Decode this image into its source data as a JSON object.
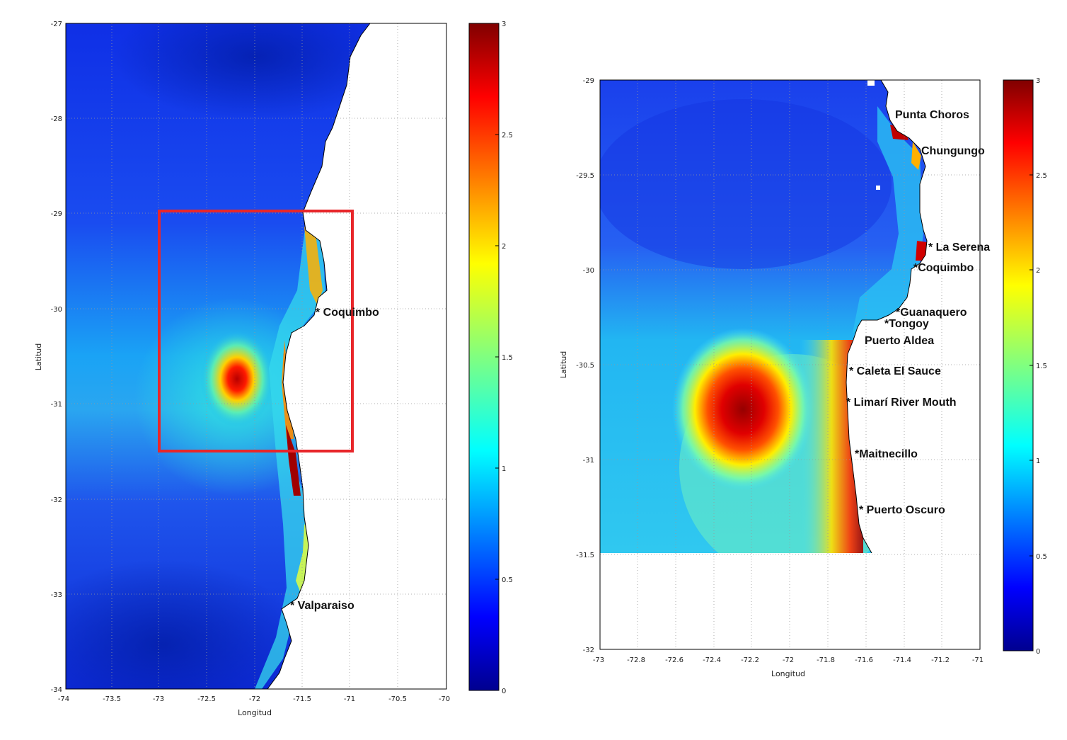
{
  "maps": [
    {
      "id": "left",
      "xlabel": "Longitud",
      "ylabel": "Latitud",
      "x_ticks": [
        "-74",
        "-73.5",
        "-73",
        "-72.5",
        "-72",
        "-71.5",
        "-71",
        "-70.5",
        "-70"
      ],
      "y_ticks": [
        "-27",
        "-28",
        "-29",
        "-30",
        "-31",
        "-32",
        "-33",
        "-34"
      ],
      "colorbar_ticks": [
        "3",
        "2.5",
        "2",
        "1.5",
        "1",
        "0.5",
        "0"
      ],
      "places": [
        {
          "label": "* Coquimbo",
          "lon": -71.3,
          "lat": -30.0
        },
        {
          "label": "* Valparaiso",
          "lon": -71.6,
          "lat": -33.1
        }
      ],
      "highlight_box": {
        "lon": [
          -73,
          -71
        ],
        "lat": [
          -31.5,
          -29
        ],
        "color": "#e8262a"
      }
    },
    {
      "id": "right",
      "xlabel": "Longitud",
      "ylabel": "Latitud",
      "x_ticks": [
        "-73",
        "-72.8",
        "-72.6",
        "-72.4",
        "-72.2",
        "-72",
        "-71.8",
        "-71.6",
        "-71.4",
        "-71.2",
        "-71"
      ],
      "y_ticks": [
        "-29",
        "-29.5",
        "-30",
        "-30.5",
        "-31",
        "-31.5",
        "-32"
      ],
      "colorbar_ticks": [
        "3",
        "2.5",
        "2",
        "1.5",
        "1",
        "0.5",
        "0"
      ],
      "places": [
        {
          "label": "Punta Choros"
        },
        {
          "label": "Chungungo"
        },
        {
          "label": "* La Serena"
        },
        {
          "label": "*Coquimbo"
        },
        {
          "label": "*Guanaquero"
        },
        {
          "label": "*Tongoy"
        },
        {
          "label": "Puerto Aldea"
        },
        {
          "label": "* Caleta El Sauce"
        },
        {
          "label": "* Limarí River Mouth"
        },
        {
          "label": "*Maitnecillo"
        },
        {
          "label": "* Puerto Oscuro"
        }
      ]
    }
  ],
  "colors": {
    "jet": [
      "#00008f",
      "#0000ff",
      "#0080ff",
      "#00ffff",
      "#80ff80",
      "#ffff00",
      "#ff8000",
      "#ff0000",
      "#800000"
    ],
    "land": "#ffffff",
    "box": "#e8262a"
  }
}
